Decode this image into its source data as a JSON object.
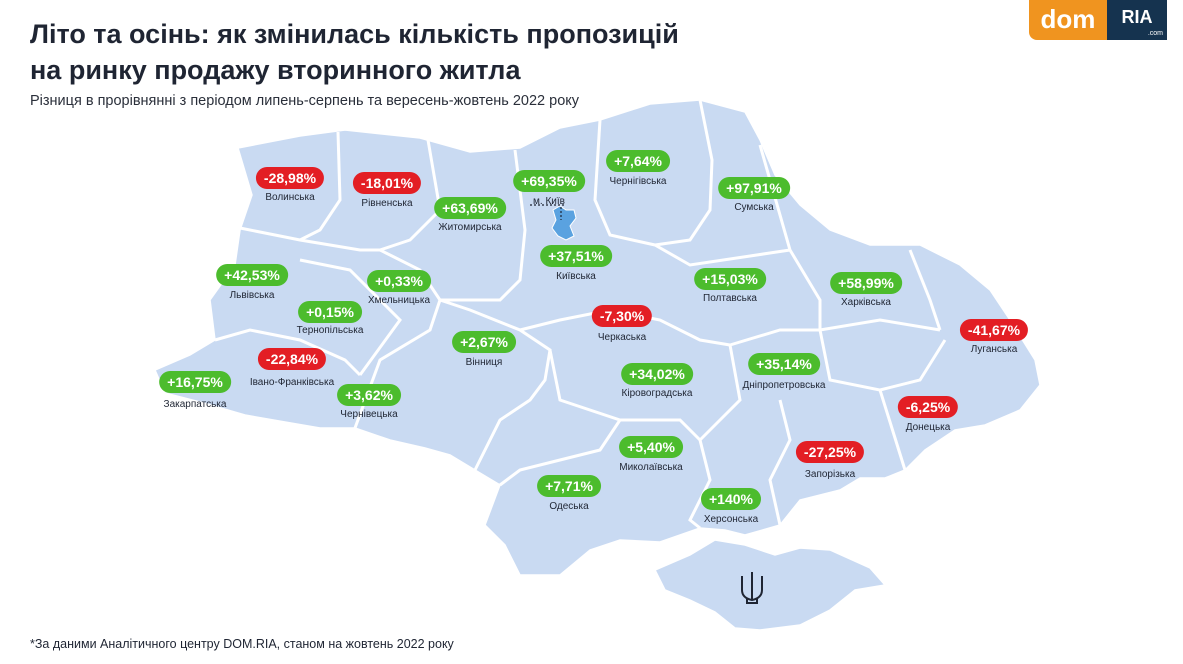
{
  "title_line1": "Літо та осінь: як змінилась кількість пропозицій",
  "title_line2": "на ринку продажу вторинного житла",
  "subtitle": "Різниця в прорівнянні з періодом липень-серпень та вересень-жовтень 2022 року",
  "logo": {
    "left": "dom",
    "right": "RIA",
    "right_small": ".com"
  },
  "footnote": "*За даними Аналітичного центру DOM.RIA, станом на жовтень 2022 року",
  "colors": {
    "map_fill": "#c9daf2",
    "map_border": "#ffffff",
    "positive": "#4cbc2d",
    "negative": "#e31e24",
    "kyiv_city": "#5aa2e0"
  },
  "regions": [
    {
      "name": "Волинська",
      "value": "-28,98%",
      "sign": "neg"
    },
    {
      "name": "Рівненська",
      "value": "-18,01%",
      "sign": "neg"
    },
    {
      "name": "Житомирська",
      "value": "+63,69%",
      "sign": "pos"
    },
    {
      "name": "м. Київ",
      "value": "+69,35%",
      "sign": "pos"
    },
    {
      "name": "Чернігівська",
      "value": "+7,64%",
      "sign": "pos"
    },
    {
      "name": "Сумська",
      "value": "+97,91%",
      "sign": "pos"
    },
    {
      "name": "Київська",
      "value": "+37,51%",
      "sign": "pos"
    },
    {
      "name": "Львівська",
      "value": "+42,53%",
      "sign": "pos"
    },
    {
      "name": "Хмельницька",
      "value": "+0,33%",
      "sign": "pos"
    },
    {
      "name": "Тернопільська",
      "value": "+0,15%",
      "sign": "pos"
    },
    {
      "name": "Полтавська",
      "value": "+15,03%",
      "sign": "pos"
    },
    {
      "name": "Харківська",
      "value": "+58,99%",
      "sign": "pos"
    },
    {
      "name": "Черкаська",
      "value": "-7,30%",
      "sign": "neg"
    },
    {
      "name": "Луганська",
      "value": "-41,67%",
      "sign": "neg"
    },
    {
      "name": "Вінниця",
      "value": "+2,67%",
      "sign": "pos"
    },
    {
      "name": "Івано-Франківська",
      "value": "-22,84%",
      "sign": "neg"
    },
    {
      "name": "Закарпатська",
      "value": "+16,75%",
      "sign": "pos"
    },
    {
      "name": "Чернівецька",
      "value": "+3,62%",
      "sign": "pos"
    },
    {
      "name": "Кіровоградська",
      "value": "+34,02%",
      "sign": "pos"
    },
    {
      "name": "Дніпропетровська",
      "value": "+35,14%",
      "sign": "pos"
    },
    {
      "name": "Донецька",
      "value": "-6,25%",
      "sign": "neg"
    },
    {
      "name": "Миколаївська",
      "value": "+5,40%",
      "sign": "pos"
    },
    {
      "name": "Запорізька",
      "value": "-27,25%",
      "sign": "neg"
    },
    {
      "name": "Одеська",
      "value": "+7,71%",
      "sign": "pos"
    },
    {
      "name": "Херсонська",
      "value": "+140%",
      "sign": "pos"
    }
  ]
}
